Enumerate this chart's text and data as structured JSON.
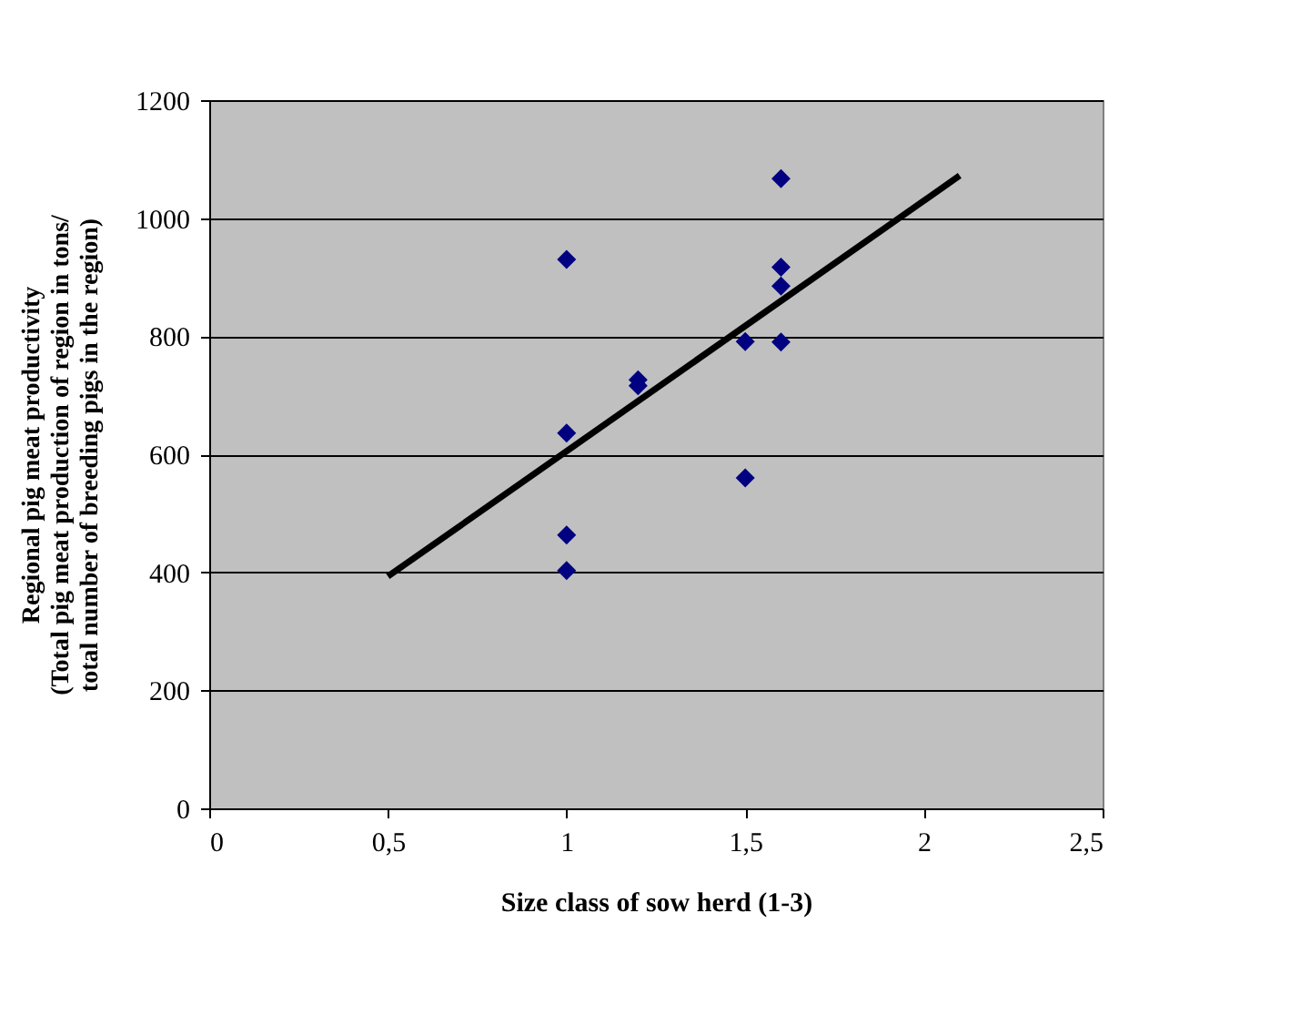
{
  "chart_data": {
    "type": "scatter",
    "xlabel": "Size class of sow herd (1-3)",
    "ylabel": "Regional pig meat productivity\n(Total pig meat production of region in tons/\ntotal number of breeding pigs in the region)",
    "xlim": [
      0,
      2.5
    ],
    "xticks": [
      0,
      {
        "value": 0.5,
        "label": "0,5"
      },
      1,
      {
        "value": 1.5,
        "label": "1,5"
      },
      2,
      {
        "value": 2.5,
        "label": "2,5"
      }
    ],
    "ylim": [
      0,
      1200
    ],
    "yticks": [
      0,
      200,
      400,
      600,
      800,
      1000,
      1200
    ],
    "grid": "y",
    "series": [
      {
        "color": "#000080",
        "marker": "diamond",
        "x": [
          1,
          1,
          1,
          1,
          1.2,
          1.2,
          1.5,
          1.5,
          1.6,
          1.6,
          1.6,
          1.6
        ],
        "values": [
          930,
          636,
          463,
          403,
          726,
          716,
          791,
          560,
          1067,
          917,
          885,
          790
        ]
      },
      {
        "type": "line",
        "color": "#000000",
        "marker": "none",
        "line_style": "solid",
        "x": [
          0.5,
          2.1
        ],
        "values": [
          393,
          1072
        ]
      }
    ]
  }
}
